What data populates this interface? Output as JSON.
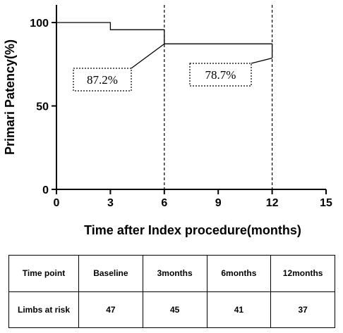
{
  "chart_data": {
    "type": "line",
    "step": true,
    "xlabel": "Time after Index procedure(months)",
    "ylabel": "Primari Patency(%)",
    "xlim": [
      0,
      15
    ],
    "ylim": [
      0,
      100
    ],
    "xticks": [
      "0",
      "3",
      "6",
      "9",
      "12",
      "15"
    ],
    "yticks": [
      "0",
      "50",
      "100"
    ],
    "grid": false,
    "series": [
      {
        "x": [
          0,
          3,
          3,
          6,
          6,
          12,
          12
        ],
        "y": [
          100,
          100,
          95.7,
          95.7,
          87.2,
          87.2,
          78.7
        ]
      }
    ],
    "reference_lines_x": [
      6,
      12
    ],
    "annotations": [
      {
        "text": "87.2%",
        "x": 6,
        "y": 87.2
      },
      {
        "text": "78.7%",
        "x": 12,
        "y": 78.7
      }
    ]
  },
  "table": {
    "rows": [
      [
        "Time point",
        "Baseline",
        "3months",
        "6months",
        "12months"
      ],
      [
        "Limbs at risk",
        "47",
        "45",
        "41",
        "37"
      ]
    ]
  }
}
